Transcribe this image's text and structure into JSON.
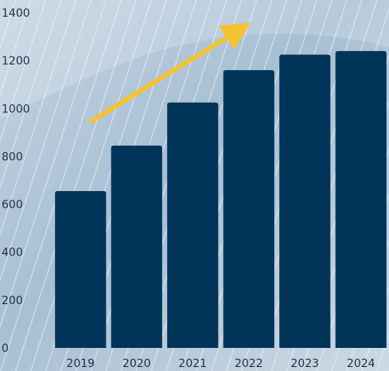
{
  "chart_data": {
    "type": "bar",
    "title": "",
    "xlabel": "",
    "ylabel": "",
    "categories": [
      "2019",
      "2020",
      "2021",
      "2022",
      "2023",
      "2024"
    ],
    "values": [
      655,
      845,
      1025,
      1160,
      1225,
      1240
    ],
    "ylim": [
      0,
      1400
    ],
    "yticks": [
      "0",
      "200",
      "400",
      "600",
      "800",
      "1000",
      "1200",
      "1400"
    ],
    "grid": false,
    "legend": "none",
    "colors": {
      "bar": "#003459",
      "arrow": "#f4c430",
      "tick_text": "#1f2f45"
    },
    "annotations": [
      {
        "type": "trend-arrow",
        "description": "upward trend"
      }
    ]
  }
}
